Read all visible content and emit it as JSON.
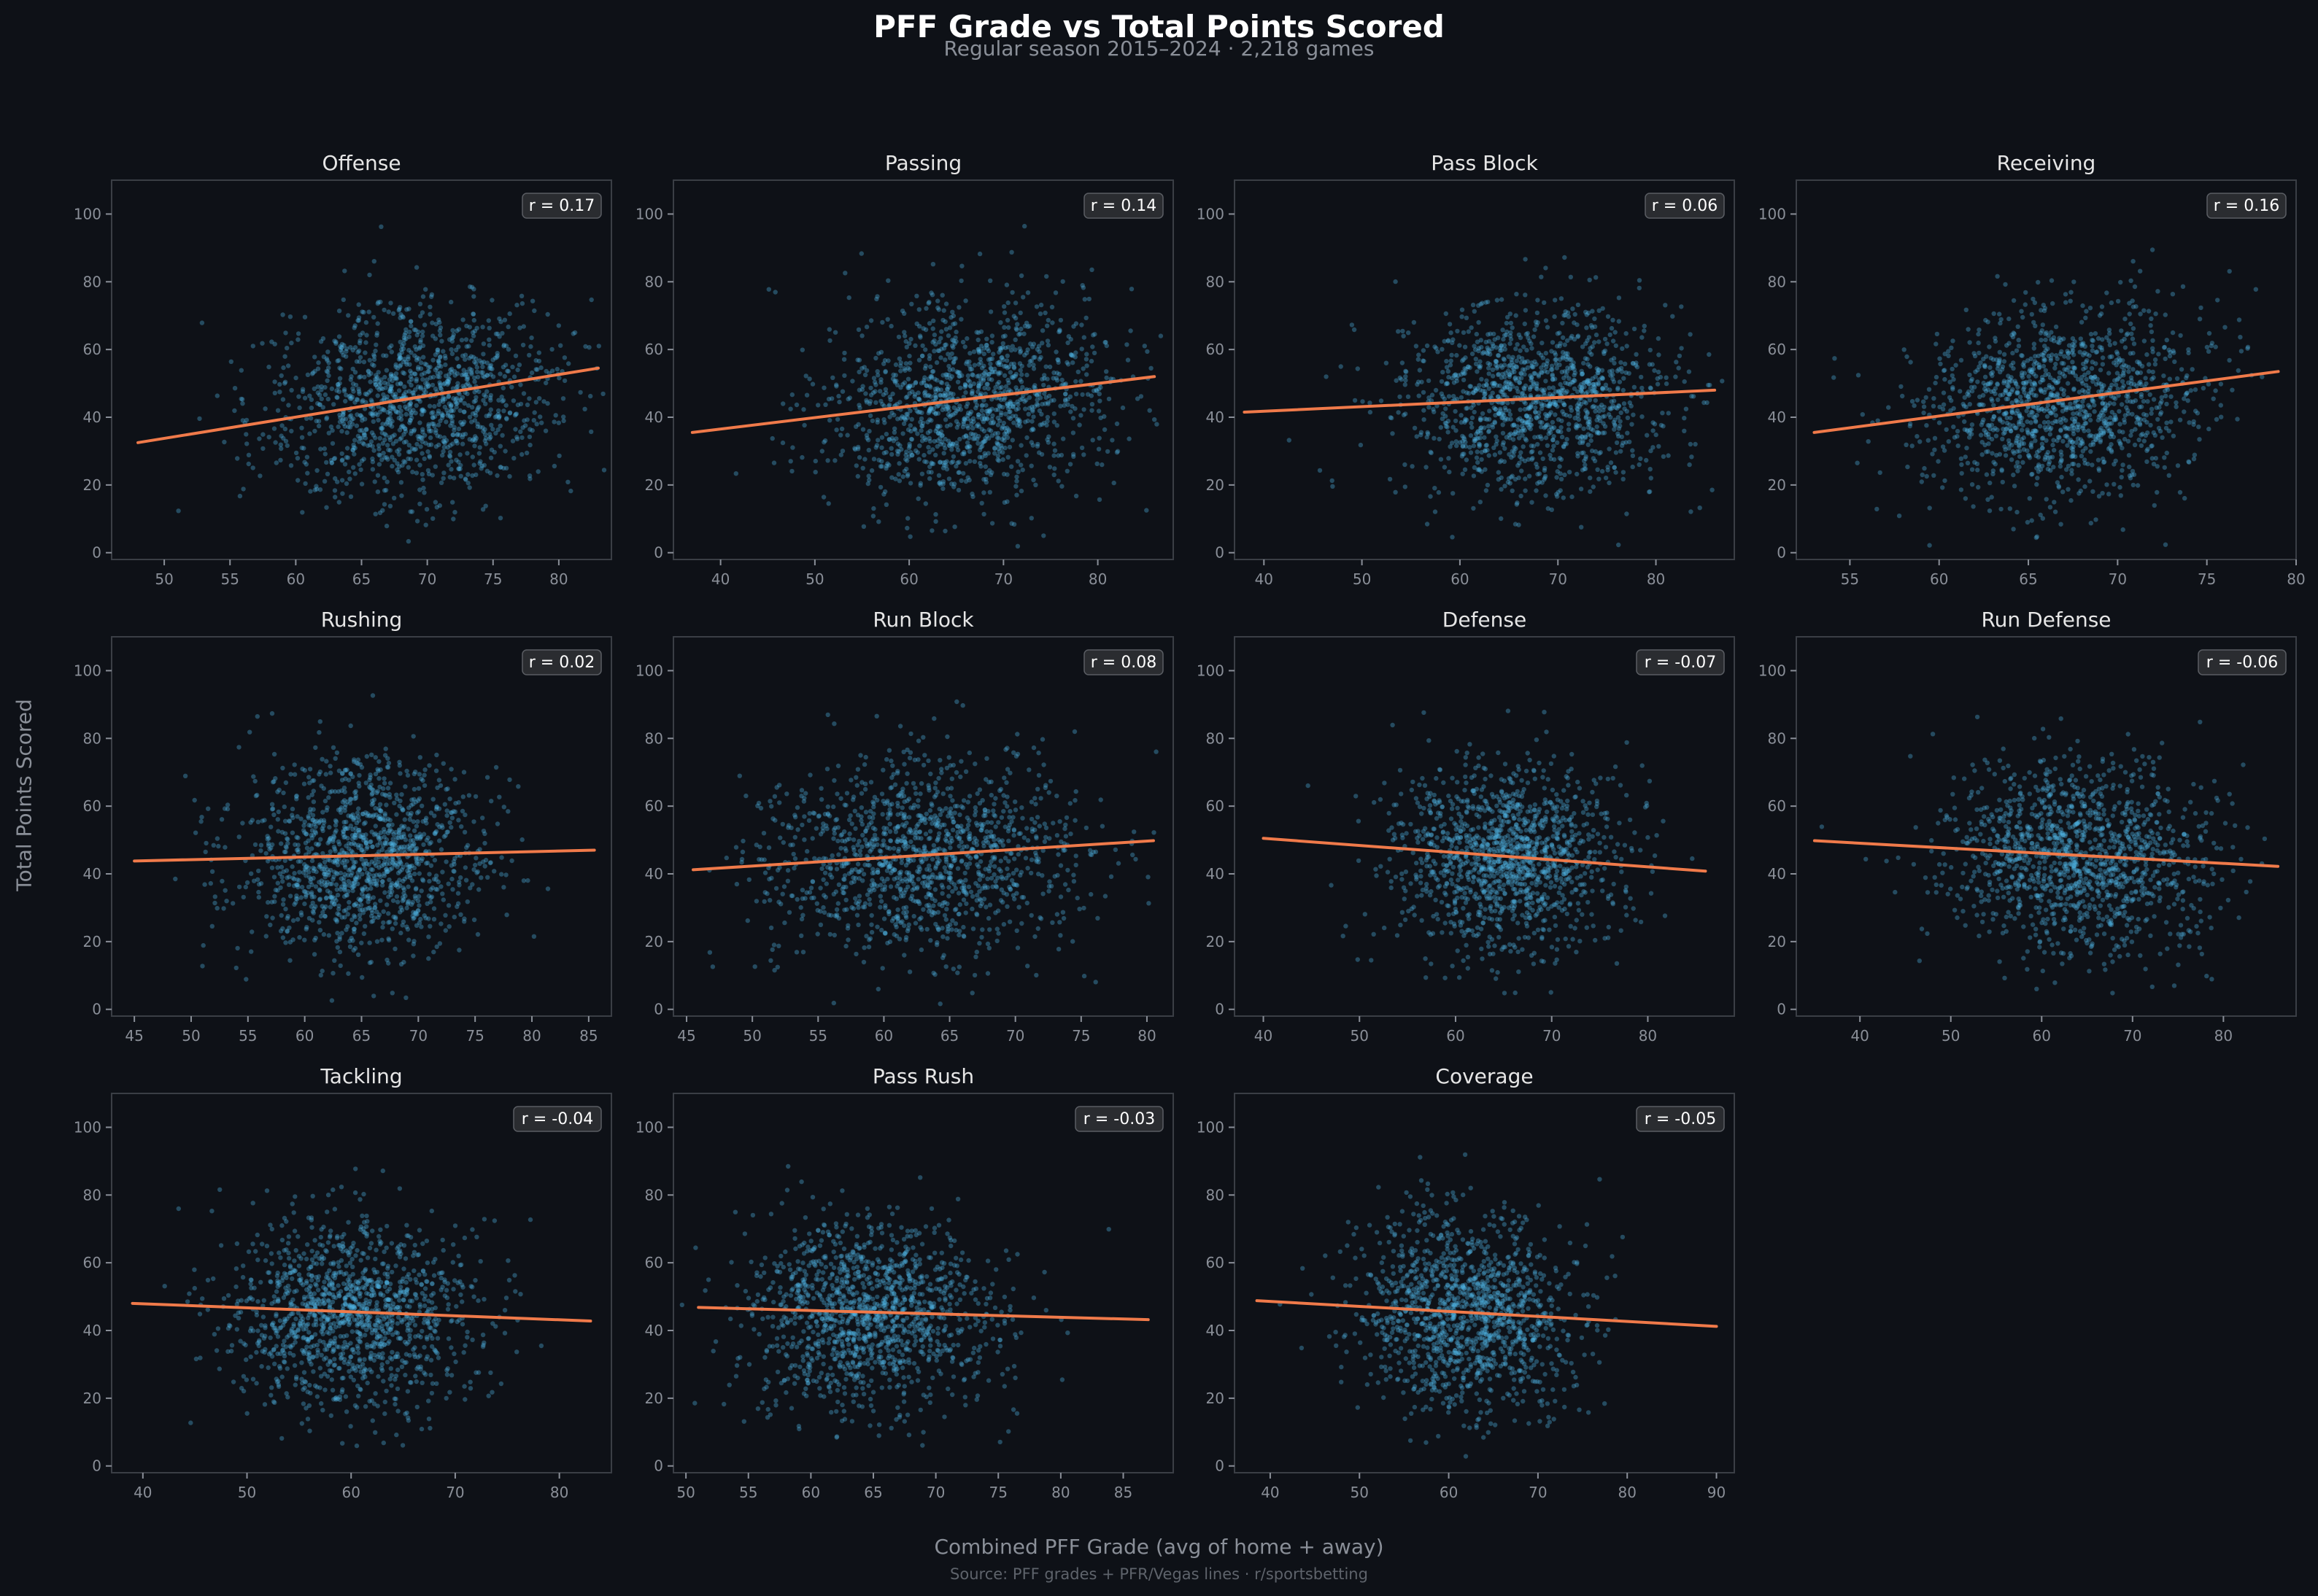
{
  "figure": {
    "title": "PFF Grade vs Total Points Scored",
    "subtitle": "Regular season 2015–2024 · 2,218 games",
    "ylabel": "Total Points Scored",
    "xlabel": "Combined PFF Grade (avg of home + away)",
    "source": "Source: PFF grades + PFR/Vegas lines · r/sportsbetting"
  },
  "colors": {
    "background": "#0e1117",
    "panel": "#0e1117",
    "panel_border": "#3a3e45",
    "points": "#4fb7e8",
    "trend": "#f07a4a",
    "text": "#e6e6e6",
    "tick": "#8a8f98"
  },
  "chart_data": [
    {
      "type": "scatter",
      "title": "Offense",
      "r_label": "r = 0.17",
      "xlim": [
        46,
        84
      ],
      "ylim": [
        -2,
        110
      ],
      "xticks": [
        50,
        55,
        60,
        65,
        70,
        75,
        80
      ],
      "yticks": [
        0,
        20,
        40,
        60,
        80,
        100
      ],
      "x_center": 69,
      "x_spread": 5.5,
      "y_center": 45,
      "y_spread": 14,
      "trend": {
        "x": [
          48,
          83
        ],
        "y": [
          32.5,
          54.5
        ]
      }
    },
    {
      "type": "scatter",
      "title": "Passing",
      "r_label": "r = 0.14",
      "xlim": [
        35,
        88
      ],
      "ylim": [
        -2,
        110
      ],
      "xticks": [
        40,
        50,
        60,
        70,
        80
      ],
      "yticks": [
        0,
        20,
        40,
        60,
        80,
        100
      ],
      "x_center": 66,
      "x_spread": 7.5,
      "y_center": 45,
      "y_spread": 14,
      "trend": {
        "x": [
          37,
          86
        ],
        "y": [
          35.5,
          52
        ]
      }
    },
    {
      "type": "scatter",
      "title": "Pass Block",
      "r_label": "r = 0.06",
      "xlim": [
        37,
        88
      ],
      "ylim": [
        -2,
        110
      ],
      "xticks": [
        40,
        50,
        60,
        70,
        80
      ],
      "yticks": [
        0,
        20,
        40,
        60,
        80,
        100
      ],
      "x_center": 68,
      "x_spread": 7,
      "y_center": 45,
      "y_spread": 14,
      "trend": {
        "x": [
          38,
          86
        ],
        "y": [
          41.5,
          48
        ]
      }
    },
    {
      "type": "scatter",
      "title": "Receiving",
      "r_label": "r = 0.16",
      "xlim": [
        52,
        80
      ],
      "ylim": [
        -2,
        110
      ],
      "xticks": [
        55,
        60,
        65,
        70,
        75,
        80
      ],
      "yticks": [
        0,
        20,
        40,
        60,
        80,
        100
      ],
      "x_center": 67,
      "x_spread": 4,
      "y_center": 45,
      "y_spread": 14,
      "trend": {
        "x": [
          53,
          79
        ],
        "y": [
          35.5,
          53.5
        ]
      }
    },
    {
      "type": "scatter",
      "title": "Rushing",
      "r_label": "r = 0.02",
      "xlim": [
        43,
        87
      ],
      "ylim": [
        -2,
        110
      ],
      "xticks": [
        45,
        50,
        55,
        60,
        65,
        70,
        75,
        80,
        85
      ],
      "yticks": [
        0,
        20,
        40,
        60,
        80,
        100
      ],
      "x_center": 65,
      "x_spread": 5.5,
      "y_center": 45,
      "y_spread": 14,
      "trend": {
        "x": [
          45,
          85.5
        ],
        "y": [
          43.8,
          47
        ]
      }
    },
    {
      "type": "scatter",
      "title": "Run Block",
      "r_label": "r = 0.08",
      "xlim": [
        44,
        82
      ],
      "ylim": [
        -2,
        110
      ],
      "xticks": [
        45,
        50,
        55,
        60,
        65,
        70,
        75,
        80
      ],
      "yticks": [
        0,
        20,
        40,
        60,
        80,
        100
      ],
      "x_center": 63,
      "x_spread": 6,
      "y_center": 45,
      "y_spread": 14,
      "trend": {
        "x": [
          45.5,
          80.5
        ],
        "y": [
          41.2,
          49.8
        ]
      }
    },
    {
      "type": "scatter",
      "title": "Defense",
      "r_label": "r = -0.07",
      "xlim": [
        37,
        89
      ],
      "ylim": [
        -2,
        110
      ],
      "xticks": [
        40,
        50,
        60,
        70,
        80
      ],
      "yticks": [
        0,
        20,
        40,
        60,
        80,
        100
      ],
      "x_center": 65,
      "x_spread": 6,
      "y_center": 45,
      "y_spread": 14,
      "trend": {
        "x": [
          40,
          86
        ],
        "y": [
          50.5,
          40.8
        ]
      }
    },
    {
      "type": "scatter",
      "title": "Run Defense",
      "r_label": "r = -0.06",
      "xlim": [
        33,
        88
      ],
      "ylim": [
        -2,
        110
      ],
      "xticks": [
        40,
        50,
        60,
        70,
        80
      ],
      "yticks": [
        0,
        20,
        40,
        60,
        80,
        100
      ],
      "x_center": 64,
      "x_spread": 7,
      "y_center": 45,
      "y_spread": 14,
      "trend": {
        "x": [
          35,
          86
        ],
        "y": [
          49.8,
          42.2
        ]
      }
    },
    {
      "type": "scatter",
      "title": "Tackling",
      "r_label": "r = -0.04",
      "xlim": [
        37,
        85
      ],
      "ylim": [
        -2,
        110
      ],
      "xticks": [
        40,
        50,
        60,
        70,
        80
      ],
      "yticks": [
        0,
        20,
        40,
        60,
        80,
        100
      ],
      "x_center": 60,
      "x_spread": 6,
      "y_center": 45,
      "y_spread": 14,
      "trend": {
        "x": [
          39,
          83
        ],
        "y": [
          48,
          42.8
        ]
      }
    },
    {
      "type": "scatter",
      "title": "Pass Rush",
      "r_label": "r = -0.03",
      "xlim": [
        49,
        89
      ],
      "ylim": [
        -2,
        110
      ],
      "xticks": [
        50,
        55,
        60,
        65,
        70,
        75,
        80,
        85
      ],
      "yticks": [
        0,
        20,
        40,
        60,
        80,
        100
      ],
      "x_center": 65,
      "x_spread": 5,
      "y_center": 45,
      "y_spread": 14,
      "trend": {
        "x": [
          51,
          87
        ],
        "y": [
          46.8,
          43.2
        ]
      }
    },
    {
      "type": "scatter",
      "title": "Coverage",
      "r_label": "r = -0.05",
      "xlim": [
        36,
        92
      ],
      "ylim": [
        -2,
        110
      ],
      "xticks": [
        40,
        50,
        60,
        70,
        80,
        90
      ],
      "yticks": [
        0,
        20,
        40,
        60,
        80,
        100
      ],
      "x_center": 62,
      "x_spread": 6,
      "y_center": 45,
      "y_spread": 14,
      "trend": {
        "x": [
          38.5,
          90
        ],
        "y": [
          48.8,
          41.2
        ]
      }
    }
  ]
}
